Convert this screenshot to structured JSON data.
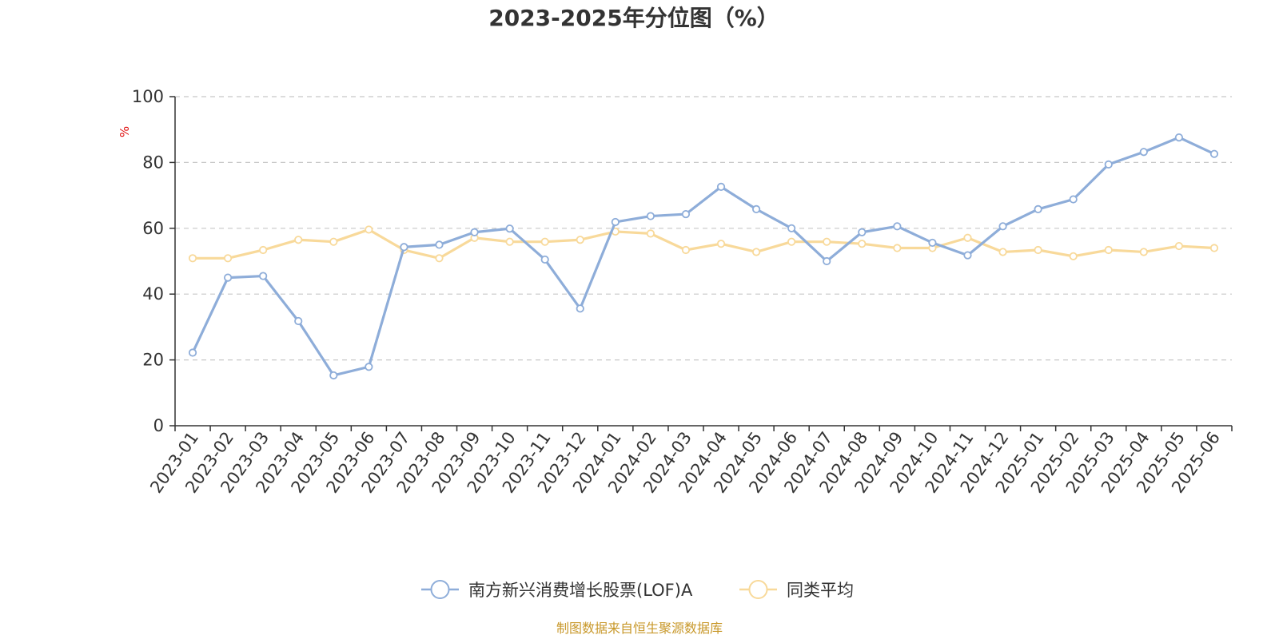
{
  "chart_data": {
    "type": "line",
    "title": "2023-2025年分位图（%）",
    "ylabel": "%",
    "xlabel": "",
    "ylim": [
      0,
      100
    ],
    "y_ticks": [
      0,
      20,
      40,
      60,
      80,
      100
    ],
    "grid": "horizontal dashed",
    "legend_position": "bottom",
    "categories": [
      "2023-01",
      "2023-02",
      "2023-03",
      "2023-04",
      "2023-05",
      "2023-06",
      "2023-07",
      "2023-08",
      "2023-09",
      "2023-10",
      "2023-11",
      "2023-12",
      "2024-01",
      "2024-02",
      "2024-03",
      "2024-04",
      "2024-05",
      "2024-06",
      "2024-07",
      "2024-08",
      "2024-09",
      "2024-10",
      "2024-11",
      "2024-12",
      "2025-01",
      "2025-02",
      "2025-03",
      "2025-04",
      "2025-05",
      "2025-06"
    ],
    "series": [
      {
        "name": "南方新兴消费增长股票(LOF)A",
        "color": "#8eadd9",
        "values": [
          22.2,
          45.0,
          45.5,
          31.8,
          15.3,
          17.9,
          54.3,
          55.0,
          58.8,
          59.9,
          50.5,
          35.6,
          61.9,
          63.7,
          64.3,
          72.6,
          65.8,
          60.0,
          50.0,
          58.8,
          60.6,
          55.6,
          51.8,
          60.6,
          65.8,
          68.8,
          79.4,
          83.2,
          87.6,
          82.6
        ]
      },
      {
        "name": "同类平均",
        "color": "#f8d99a",
        "values": [
          50.9,
          50.9,
          53.4,
          56.5,
          55.9,
          59.6,
          53.4,
          50.9,
          57.1,
          55.9,
          55.9,
          56.5,
          59.0,
          58.4,
          53.4,
          55.3,
          52.8,
          55.9,
          55.9,
          55.3,
          54.0,
          54.0,
          57.1,
          52.8,
          53.4,
          51.5,
          53.4,
          52.8,
          54.6,
          54.0
        ]
      }
    ]
  },
  "source_text": "制图数据来自恒生聚源数据库"
}
